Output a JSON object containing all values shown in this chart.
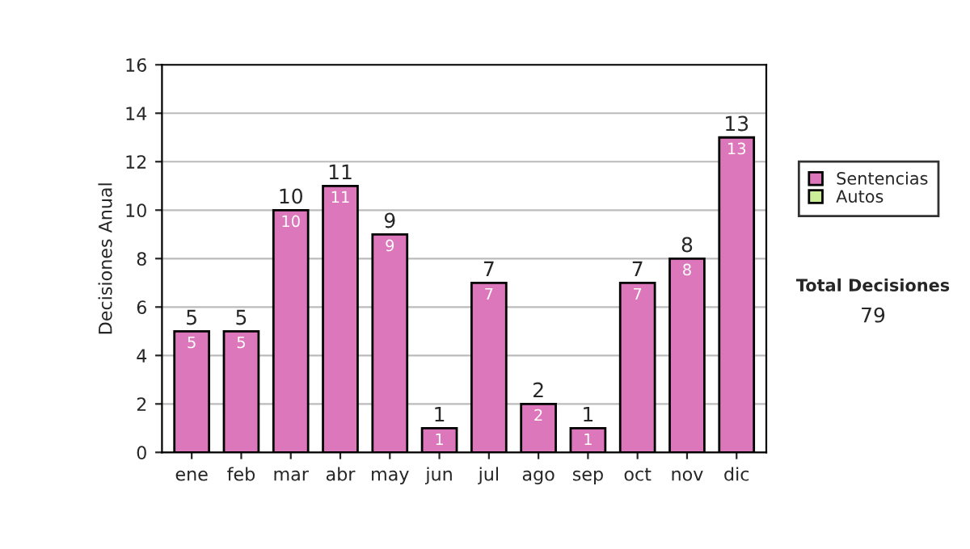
{
  "chart_data": {
    "type": "bar",
    "ylabel": "Decisiones Anual",
    "categories": [
      "ene",
      "feb",
      "mar",
      "abr",
      "may",
      "jun",
      "jul",
      "ago",
      "sep",
      "oct",
      "nov",
      "dic"
    ],
    "series": [
      {
        "name": "Sentencias",
        "color": "#dd77bb",
        "values": [
          5,
          5,
          10,
          11,
          9,
          1,
          7,
          2,
          1,
          7,
          8,
          13
        ]
      },
      {
        "name": "Autos",
        "color": "#ccee99",
        "values": [
          null,
          null,
          null,
          null,
          null,
          null,
          null,
          null,
          null,
          null,
          null,
          null
        ]
      }
    ],
    "stacked": true,
    "data_labels": true,
    "totals": [
      "5",
      "5",
      "10",
      "11",
      "9",
      "1",
      "7",
      "2",
      "1",
      "7",
      "8",
      "13"
    ],
    "ylim": [
      0,
      16
    ],
    "yticks": [
      0,
      2,
      4,
      6,
      8,
      10,
      12,
      14,
      16
    ],
    "grid": "y",
    "legend": "right",
    "annotations": [
      "Total Decisiones",
      "79"
    ]
  }
}
